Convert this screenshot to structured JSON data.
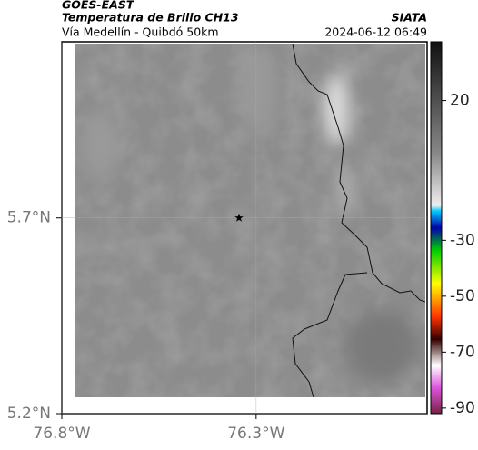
{
  "header": {
    "title": "GOES-EAST",
    "subtitle": "Temperatura de Brillo CH13",
    "route": "Vía Medellín - Quibdó 50km",
    "source": "SIATA",
    "datetime": "2024-06-12 06:49"
  },
  "map": {
    "lat_range": [
      5.2,
      6.15
    ],
    "lon_range": [
      -76.8,
      -75.86
    ],
    "lat_ticks": [
      {
        "value": 5.2,
        "label": "5.2°N"
      },
      {
        "value": 5.7,
        "label": "5.7°N"
      }
    ],
    "lon_ticks": [
      {
        "value": -76.8,
        "label": "76.8°W"
      },
      {
        "value": -76.3,
        "label": "76.3°W"
      }
    ],
    "marker": {
      "lat": 5.7,
      "lon": -76.344
    }
  },
  "colorbar": {
    "range": [
      -92,
      41
    ],
    "ticks": [
      20,
      -30,
      -50,
      -70,
      -90
    ]
  }
}
